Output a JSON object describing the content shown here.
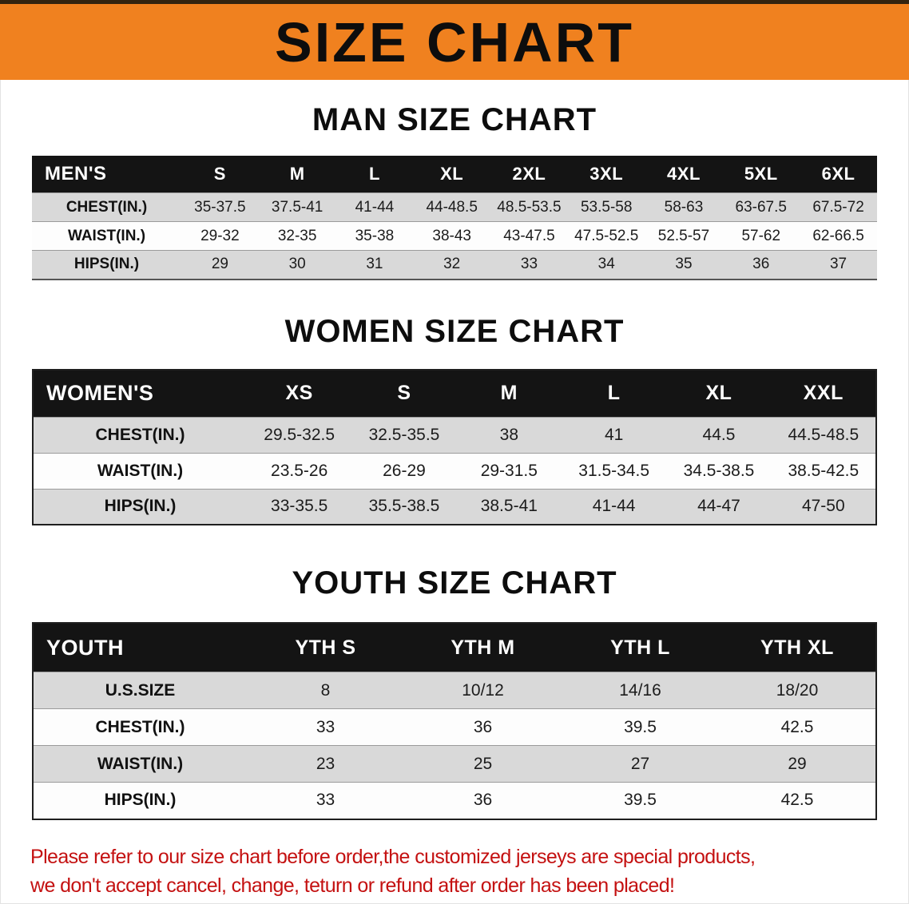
{
  "banner": {
    "title": "SIZE CHART",
    "bg_color": "#f0811f"
  },
  "chart_data": [
    {
      "type": "table",
      "title": "MAN SIZE CHART",
      "header": [
        "MEN'S",
        "S",
        "M",
        "L",
        "XL",
        "2XL",
        "3XL",
        "4XL",
        "5XL",
        "6XL"
      ],
      "rows": [
        [
          "CHEST(IN.)",
          "35-37.5",
          "37.5-41",
          "41-44",
          "44-48.5",
          "48.5-53.5",
          "53.5-58",
          "58-63",
          "63-67.5",
          "67.5-72"
        ],
        [
          "WAIST(IN.)",
          "29-32",
          "32-35",
          "35-38",
          "38-43",
          "43-47.5",
          "47.5-52.5",
          "52.5-57",
          "57-62",
          "62-66.5"
        ],
        [
          "HIPS(IN.)",
          "29",
          "30",
          "31",
          "32",
          "33",
          "34",
          "35",
          "36",
          "37"
        ]
      ]
    },
    {
      "type": "table",
      "title": "WOMEN SIZE CHART",
      "header": [
        "WOMEN'S",
        "XS",
        "S",
        "M",
        "L",
        "XL",
        "XXL"
      ],
      "rows": [
        [
          "CHEST(IN.)",
          "29.5-32.5",
          "32.5-35.5",
          "38",
          "41",
          "44.5",
          "44.5-48.5"
        ],
        [
          "WAIST(IN.)",
          "23.5-26",
          "26-29",
          "29-31.5",
          "31.5-34.5",
          "34.5-38.5",
          "38.5-42.5"
        ],
        [
          "HIPS(IN.)",
          "33-35.5",
          "35.5-38.5",
          "38.5-41",
          "41-44",
          "44-47",
          "47-50"
        ]
      ]
    },
    {
      "type": "table",
      "title": "YOUTH SIZE CHART",
      "header": [
        "YOUTH",
        "YTH S",
        "YTH M",
        "YTH L",
        "YTH XL"
      ],
      "rows": [
        [
          "U.S.SIZE",
          "8",
          "10/12",
          "14/16",
          "18/20"
        ],
        [
          "CHEST(IN.)",
          "33",
          "36",
          "39.5",
          "42.5"
        ],
        [
          "WAIST(IN.)",
          "23",
          "25",
          "27",
          "29"
        ],
        [
          "HIPS(IN.)",
          "33",
          "36",
          "39.5",
          "42.5"
        ]
      ]
    }
  ],
  "footer": {
    "line1": "Please refer to our size chart before order,the customized jerseys are special products,",
    "line2": "we don't accept cancel, change, teturn or refund after order has been placed!",
    "color": "#c41111"
  }
}
